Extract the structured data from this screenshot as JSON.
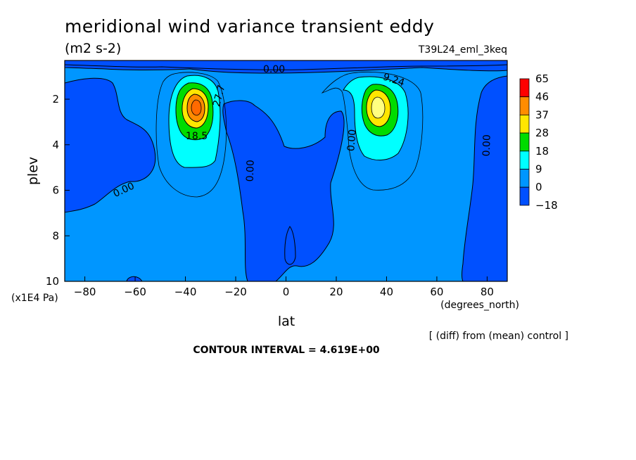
{
  "figure": {
    "title": "meridional wind variance transient eddy",
    "units": "(m2 s-2)",
    "run_label": "T39L24_eml_3keq",
    "note": "[ (diff) from (mean) control ]",
    "contour_interval_text": "CONTOUR INTERVAL = 4.619E+00"
  },
  "chart_data": {
    "type": "heatmap",
    "title": "meridional wind variance transient eddy",
    "subtitle": "(m2 s-2)",
    "xlabel": "lat",
    "x_unit": "(degrees_north)",
    "ylabel": "plev",
    "y_unit": "(x1E4 Pa)",
    "xlim": [
      -88,
      88
    ],
    "ylim": [
      10,
      0.3
    ],
    "x_ticks": [
      -80,
      -60,
      -40,
      -20,
      0,
      20,
      40,
      60,
      80
    ],
    "x_tick_labels": [
      "−80",
      "−60",
      "−40",
      "−20",
      "0",
      "20",
      "40",
      "60",
      "80"
    ],
    "y_ticks": [
      2,
      4,
      6,
      8,
      10
    ],
    "y_tick_labels": [
      "2",
      "4",
      "6",
      "8",
      "10"
    ],
    "grid": false,
    "colorbar": {
      "placement": "right",
      "labels": [
        "65",
        "46",
        "37",
        "28",
        "18",
        "9",
        "0",
        "−18"
      ],
      "colors": [
        "#ff0000",
        "#ff8c00",
        "#ffe600",
        "#00dc00",
        "#00ffff",
        "#0096ff",
        "#0050ff"
      ]
    },
    "contour_labels": [
      "0.00",
      "9.24",
      "18.5",
      "27.7",
      "0.00",
      "0.00",
      "0.00",
      "0.00"
    ],
    "features": [
      {
        "name": "southern jet maximum",
        "lat": -34,
        "plev": 2.2,
        "peak_band": "37-46"
      },
      {
        "name": "northern jet maximum",
        "lat": 36,
        "plev": 2.2,
        "peak_band": "28-37"
      }
    ]
  }
}
